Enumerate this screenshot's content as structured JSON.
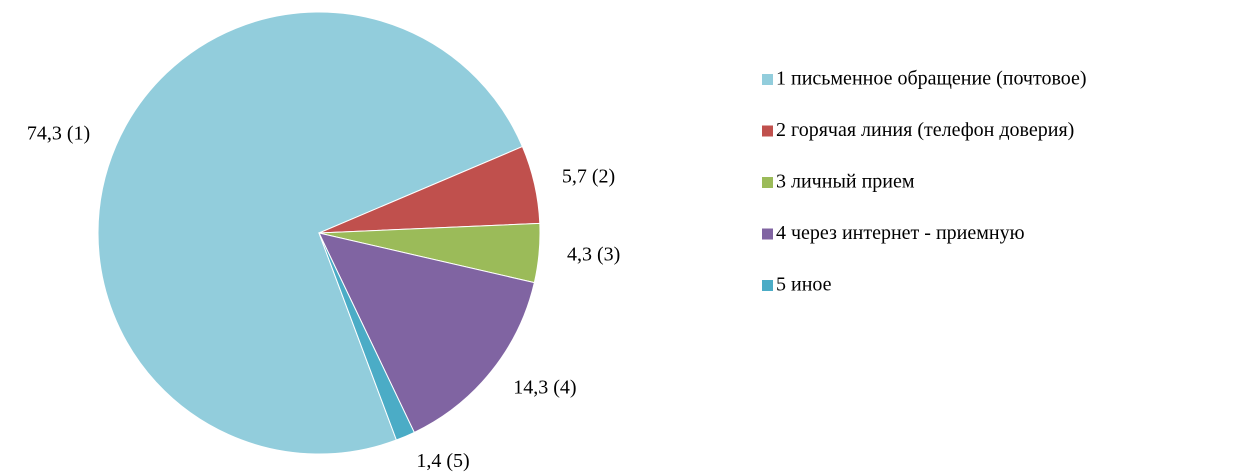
{
  "chart_data": {
    "type": "pie",
    "categories": [
      "1 письменное обращение (почтовое)",
      "2 горячая линия (телефон доверия)",
      "3 личный прием",
      "4 через интернет - приемную",
      "5 иное"
    ],
    "values": [
      74.3,
      5.7,
      4.3,
      14.3,
      1.4
    ],
    "value_labels": [
      "74,3 (1)",
      "5,7 (2)",
      "4,3 (3)",
      "14,3 (4)",
      "1,4 (5)"
    ],
    "colors": [
      "#92cddc",
      "#c0504d",
      "#9bbb59",
      "#8064a2",
      "#4bacc6"
    ],
    "legend": "right"
  }
}
